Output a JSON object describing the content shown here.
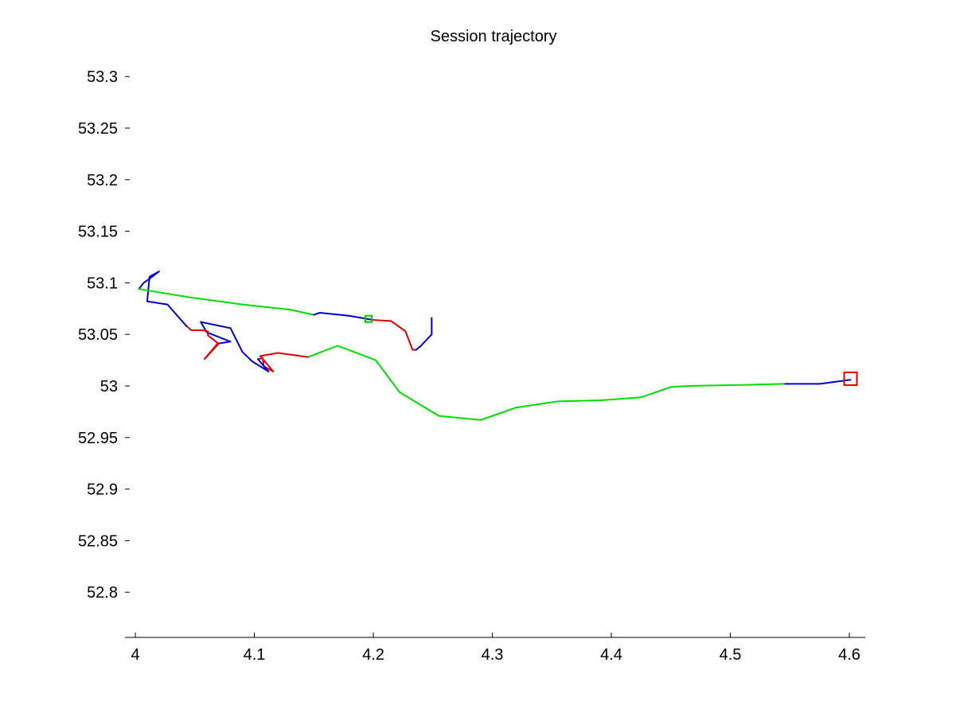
{
  "chart_data": {
    "type": "line",
    "title": "Session trajectory",
    "xlabel": "",
    "ylabel": "",
    "xlim": [
      4.0,
      4.6
    ],
    "ylim": [
      52.76,
      53.31
    ],
    "x_ticks": [
      {
        "value": 4.0,
        "label": "4"
      },
      {
        "value": 4.1,
        "label": "4.1"
      },
      {
        "value": 4.2,
        "label": "4.2"
      },
      {
        "value": 4.3,
        "label": "4.3"
      },
      {
        "value": 4.4,
        "label": "4.4"
      },
      {
        "value": 4.5,
        "label": "4.5"
      },
      {
        "value": 4.6,
        "label": "4.6"
      }
    ],
    "y_ticks": [
      {
        "value": 52.8,
        "label": "52.8"
      },
      {
        "value": 52.85,
        "label": "52.85"
      },
      {
        "value": 52.9,
        "label": "52.9"
      },
      {
        "value": 52.95,
        "label": "52.95"
      },
      {
        "value": 53.0,
        "label": "53"
      },
      {
        "value": 53.05,
        "label": "53.05"
      },
      {
        "value": 53.1,
        "label": "53.1"
      },
      {
        "value": 53.15,
        "label": "53.15"
      },
      {
        "value": 53.2,
        "label": "53.2"
      },
      {
        "value": 53.25,
        "label": "53.25"
      },
      {
        "value": 53.3,
        "label": "53.3"
      }
    ],
    "grid": false,
    "legend": "none",
    "segments": [
      {
        "color": "#0000cc",
        "points": [
          [
            4.601,
            53.006
          ],
          [
            4.575,
            53.002
          ],
          [
            4.545,
            53.002
          ]
        ]
      },
      {
        "color": "#00dd00",
        "points": [
          [
            4.545,
            53.002
          ],
          [
            4.51,
            53.001
          ],
          [
            4.465,
            53.0
          ],
          [
            4.45,
            52.999
          ],
          [
            4.425,
            52.989
          ],
          [
            4.39,
            52.986
          ],
          [
            4.355,
            52.985
          ],
          [
            4.32,
            52.979
          ],
          [
            4.29,
            52.967
          ],
          [
            4.255,
            52.971
          ],
          [
            4.222,
            52.994
          ],
          [
            4.202,
            53.025
          ],
          [
            4.17,
            53.039
          ],
          [
            4.145,
            53.028
          ]
        ]
      },
      {
        "color": "#dd0000",
        "points": [
          [
            4.145,
            53.028
          ],
          [
            4.12,
            53.032
          ],
          [
            4.105,
            53.029
          ],
          [
            4.116,
            53.014
          ],
          [
            4.108,
            53.019
          ],
          [
            4.107,
            53.027
          ],
          [
            4.103,
            53.026
          ]
        ]
      },
      {
        "color": "#0000cc",
        "points": [
          [
            4.103,
            53.026
          ],
          [
            4.112,
            53.014
          ],
          [
            4.098,
            53.024
          ],
          [
            4.09,
            53.033
          ],
          [
            4.08,
            53.056
          ],
          [
            4.055,
            53.062
          ],
          [
            4.06,
            53.052
          ],
          [
            4.08,
            53.043
          ],
          [
            4.069,
            53.041
          ]
        ]
      },
      {
        "color": "#dd0000",
        "points": [
          [
            4.069,
            53.041
          ],
          [
            4.058,
            53.026
          ],
          [
            4.07,
            53.041
          ],
          [
            4.061,
            53.049
          ],
          [
            4.061,
            53.053
          ],
          [
            4.056,
            53.054
          ],
          [
            4.047,
            53.054
          ],
          [
            4.043,
            53.058
          ]
        ]
      },
      {
        "color": "#0000cc",
        "points": [
          [
            4.043,
            53.058
          ],
          [
            4.027,
            53.079
          ],
          [
            4.01,
            53.082
          ],
          [
            4.012,
            53.106
          ],
          [
            4.02,
            53.111
          ],
          [
            4.012,
            53.104
          ],
          [
            4.007,
            53.1
          ],
          [
            4.003,
            53.094
          ]
        ]
      },
      {
        "color": "#00dd00",
        "points": [
          [
            4.003,
            53.094
          ],
          [
            4.045,
            53.086
          ],
          [
            4.09,
            53.079
          ],
          [
            4.13,
            53.074
          ],
          [
            4.15,
            53.069
          ]
        ]
      },
      {
        "color": "#0000cc",
        "points": [
          [
            4.15,
            53.069
          ],
          [
            4.155,
            53.071
          ],
          [
            4.18,
            53.068
          ],
          [
            4.2,
            53.064
          ]
        ]
      },
      {
        "color": "#dd0000",
        "points": [
          [
            4.2,
            53.064
          ],
          [
            4.215,
            53.063
          ],
          [
            4.227,
            53.053
          ],
          [
            4.233,
            53.035
          ],
          [
            4.236,
            53.035
          ]
        ]
      },
      {
        "color": "#0000cc",
        "points": [
          [
            4.236,
            53.035
          ],
          [
            4.24,
            53.039
          ],
          [
            4.249,
            53.05
          ],
          [
            4.249,
            53.066
          ]
        ]
      }
    ],
    "markers": [
      {
        "shape": "square",
        "color": "#dd0000",
        "x": 4.601,
        "y": 53.007,
        "size": "large"
      },
      {
        "shape": "square",
        "color": "#00cc00",
        "x": 4.196,
        "y": 53.065,
        "size": "small"
      }
    ]
  }
}
